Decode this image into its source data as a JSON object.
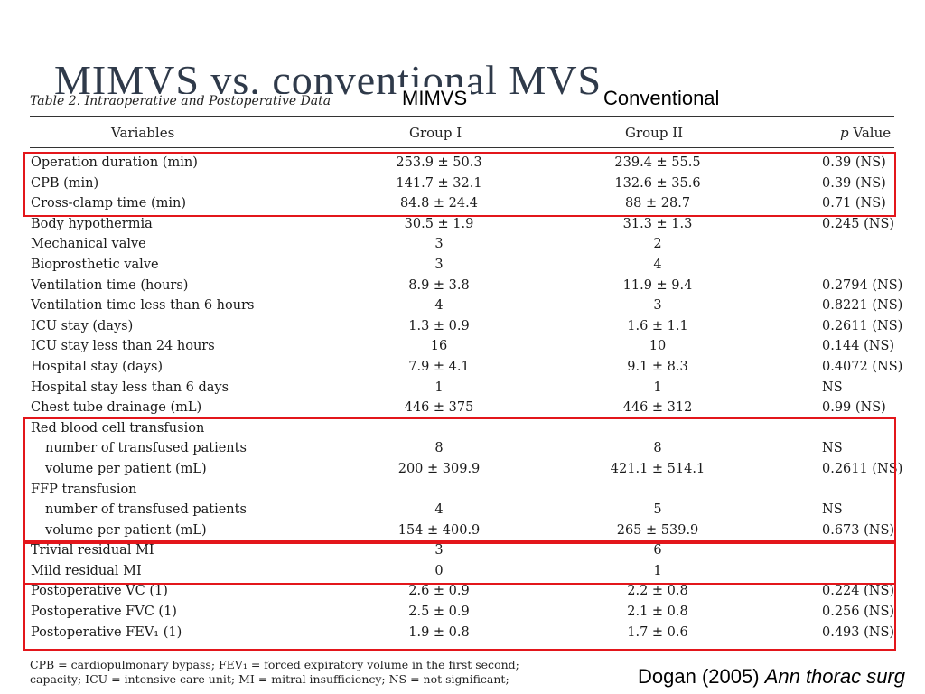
{
  "slide": {
    "title": "MIMVS vs. conventional MVS",
    "label_group1": "MIMVS",
    "label_group2": "Conventional",
    "citation_author": "Dogan (2005)",
    "citation_journal": "Ann thorac surg"
  },
  "table": {
    "caption": "Table 2. Intraoperative and Postoperative Data",
    "headers": {
      "variables": "Variables",
      "group1": "Group I",
      "group2": "Group II",
      "p_prefix": "p",
      "p_suffix": "Value"
    },
    "rows": [
      {
        "variable": "Operation duration (min)",
        "group1": "253.9 ± 50.3",
        "group2": "239.4 ± 55.5",
        "p": "0.39 (NS)"
      },
      {
        "variable": "CPB (min)",
        "group1": "141.7 ± 32.1",
        "group2": "132.6 ± 35.6",
        "p": "0.39 (NS)"
      },
      {
        "variable": "Cross-clamp time (min)",
        "group1": "84.8 ± 24.4",
        "group2": "88 ± 28.7",
        "p": "0.71 (NS)"
      },
      {
        "variable": "Body hypothermia",
        "group1": "30.5 ± 1.9",
        "group2": "31.3 ± 1.3",
        "p": "0.245 (NS)"
      },
      {
        "variable": "Mechanical valve",
        "group1": "3",
        "group2": "2",
        "p": ""
      },
      {
        "variable": "Bioprosthetic valve",
        "group1": "3",
        "group2": "4",
        "p": ""
      },
      {
        "variable": "Ventilation time (hours)",
        "group1": "8.9 ± 3.8",
        "group2": "11.9 ± 9.4",
        "p": "0.2794 (NS)"
      },
      {
        "variable": "Ventilation time less than 6 hours",
        "group1": "4",
        "group2": "3",
        "p": "0.8221 (NS)"
      },
      {
        "variable": "ICU stay (days)",
        "group1": "1.3 ± 0.9",
        "group2": "1.6 ± 1.1",
        "p": "0.2611 (NS)"
      },
      {
        "variable": "ICU stay less than 24 hours",
        "group1": "16",
        "group2": "10",
        "p": "0.144 (NS)"
      },
      {
        "variable": "Hospital stay (days)",
        "group1": "7.9 ± 4.1",
        "group2": "9.1 ± 8.3",
        "p": "0.4072 (NS)"
      },
      {
        "variable": "Hospital stay less than 6 days",
        "group1": "1",
        "group2": "1",
        "p": "NS"
      },
      {
        "variable": "Chest tube drainage (mL)",
        "group1": "446 ± 375",
        "group2": "446 ± 312",
        "p": "0.99 (NS)"
      },
      {
        "variable": "Red blood cell transfusion",
        "group1": "",
        "group2": "",
        "p": ""
      },
      {
        "variable": "number of transfused patients",
        "group1": "8",
        "group2": "8",
        "p": "NS",
        "indent": true
      },
      {
        "variable": "volume per patient (mL)",
        "group1": "200 ± 309.9",
        "group2": "421.1 ± 514.1",
        "p": "0.2611 (NS)",
        "indent": true
      },
      {
        "variable": "FFP transfusion",
        "group1": "",
        "group2": "",
        "p": ""
      },
      {
        "variable": "number of transfused patients",
        "group1": "4",
        "group2": "5",
        "p": "NS",
        "indent": true
      },
      {
        "variable": "volume per patient (mL)",
        "group1": "154 ± 400.9",
        "group2": "265 ± 539.9",
        "p": "0.673 (NS)",
        "indent": true
      },
      {
        "variable": "Trivial residual MI",
        "group1": "3",
        "group2": "6",
        "p": ""
      },
      {
        "variable": "Mild residual MI",
        "group1": "0",
        "group2": "1",
        "p": ""
      },
      {
        "variable": "Postoperative VC (1)",
        "group1": "2.6 ± 0.9",
        "group2": "2.2 ± 0.8",
        "p": "0.224 (NS)"
      },
      {
        "variable": "Postoperative FVC (1)",
        "group1": "2.5 ± 0.9",
        "group2": "2.1 ± 0.8",
        "p": "0.256 (NS)"
      },
      {
        "variable": "Postoperative FEV₁ (1)",
        "group1": "1.9 ± 0.8",
        "group2": "1.7 ± 0.6",
        "p": "0.493 (NS)"
      }
    ],
    "footnote_line1": "CPB = cardiopulmonary bypass;     FEV₁ = forced expiratory volume in the first second;",
    "footnote_line2": "capacity;     ICU = intensive care unit;     MI = mitral insufficiency;     NS = not significant;"
  },
  "highlight_color": "#e3161b"
}
